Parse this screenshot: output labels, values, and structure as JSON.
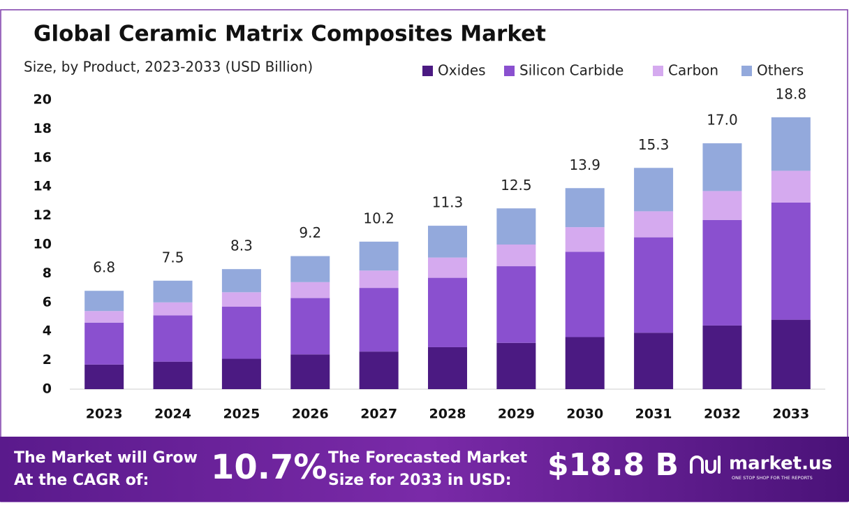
{
  "chart_data": {
    "type": "stacked_bar",
    "title": "Global Ceramic Matrix Composites Market",
    "subtitle": "Size, by Product, 2023-2033 (USD Billion)",
    "categories": [
      "2023",
      "2024",
      "2025",
      "2026",
      "2027",
      "2028",
      "2029",
      "2030",
      "2031",
      "2032",
      "2033"
    ],
    "series": [
      {
        "name": "Oxides",
        "color": "#4b1a82",
        "values": [
          1.7,
          1.9,
          2.1,
          2.4,
          2.6,
          2.9,
          3.2,
          3.6,
          3.9,
          4.4,
          4.8
        ]
      },
      {
        "name": "Silicon Carbide",
        "color": "#8a50cf",
        "values": [
          2.9,
          3.2,
          3.6,
          3.9,
          4.4,
          4.8,
          5.3,
          5.9,
          6.6,
          7.3,
          8.1
        ]
      },
      {
        "name": "Carbon",
        "color": "#d5aaef",
        "values": [
          0.8,
          0.9,
          1.0,
          1.1,
          1.2,
          1.4,
          1.5,
          1.7,
          1.8,
          2.0,
          2.2
        ]
      },
      {
        "name": "Others",
        "color": "#93a9dc",
        "values": [
          1.4,
          1.5,
          1.6,
          1.8,
          2.0,
          2.2,
          2.5,
          2.7,
          3.0,
          3.3,
          3.7
        ]
      }
    ],
    "totals": [
      6.8,
      7.5,
      8.3,
      9.2,
      10.2,
      11.3,
      12.5,
      13.9,
      15.3,
      17.0,
      18.8
    ],
    "total_labels": [
      "6.8",
      "7.5",
      "8.3",
      "9.2",
      "10.2",
      "11.3",
      "12.5",
      "13.9",
      "15.3",
      "17.0",
      "18.8"
    ],
    "ylim": [
      0,
      20
    ],
    "yticks": [
      0,
      2,
      4,
      6,
      8,
      10,
      12,
      14,
      16,
      18,
      20
    ],
    "grid": false,
    "legend": "top-right"
  },
  "footer": {
    "cagr_text_1": "The Market will Grow",
    "cagr_text_2": "At the CAGR of:",
    "cagr_value": "10.7%",
    "forecast_text_1": "The Forecasted Market",
    "forecast_text_2": "Size for 2033 in USD:",
    "forecast_value": "$18.8 B",
    "brand": "market.us",
    "tagline": "ONE STOP SHOP FOR THE REPORTS"
  }
}
